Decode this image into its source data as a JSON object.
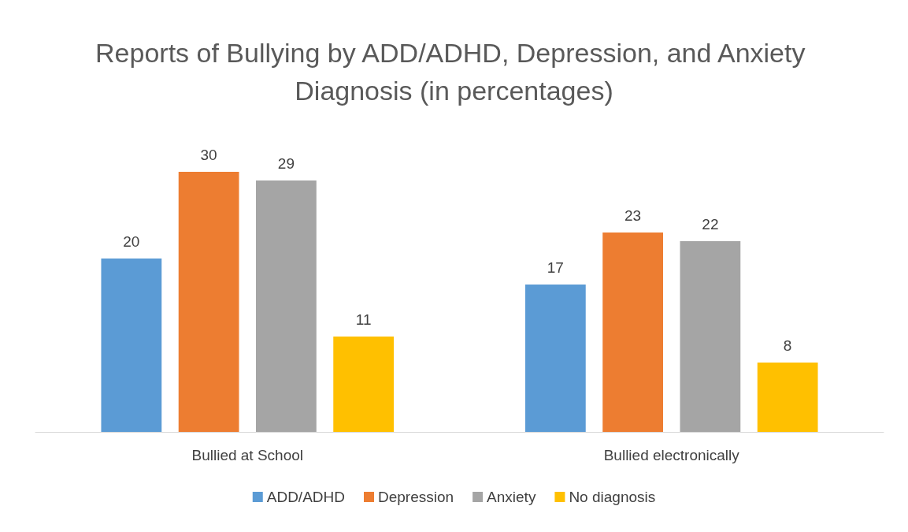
{
  "chart_data": {
    "type": "bar",
    "title": "Reports of Bullying by ADD/ADHD, Depression, and Anxiety Diagnosis (in percentages)",
    "categories": [
      "Bullied at School",
      "Bullied electronically"
    ],
    "series": [
      {
        "name": "ADD/ADHD",
        "color": "#5b9bd5",
        "values": [
          20,
          17
        ]
      },
      {
        "name": "Depression",
        "color": "#ed7d31",
        "values": [
          30,
          23
        ]
      },
      {
        "name": "Anxiety",
        "color": "#a5a5a5",
        "values": [
          29,
          22
        ]
      },
      {
        "name": "No diagnosis",
        "color": "#ffc000",
        "values": [
          11,
          8
        ]
      }
    ],
    "data_labels": true,
    "grid": false,
    "legend": "bottom"
  }
}
